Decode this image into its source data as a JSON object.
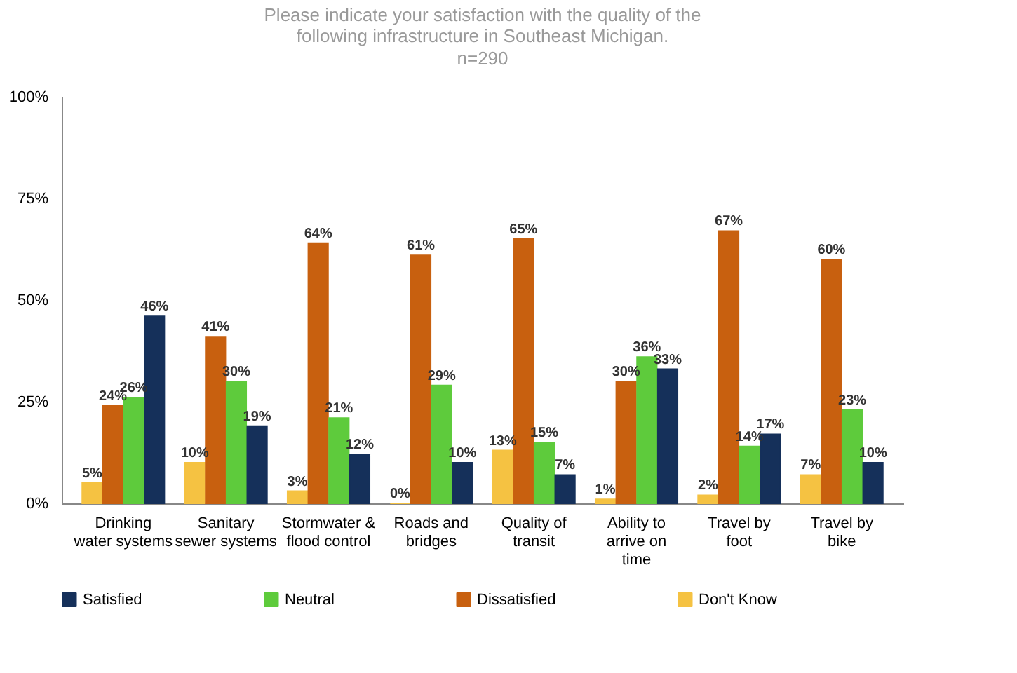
{
  "chart_data": {
    "type": "bar",
    "title": "Please indicate your satisfaction with the quality of the following infrastructure in Southeast Michigan.",
    "subtitle": "n=290",
    "categories": [
      "Drinking water systems",
      "Sanitary sewer systems",
      "Stormwater & flood control",
      "Roads and bridges",
      "Quality of transit",
      "Ability to arrive on time",
      "Travel by foot",
      "Travel by bike"
    ],
    "series": [
      {
        "name": "Don't Know",
        "color": "#f5c242",
        "values": [
          5,
          10,
          3,
          0,
          13,
          1,
          2,
          7
        ],
        "value_labels": [
          "5%",
          "10%",
          "3%",
          "0%",
          "13%",
          "1%",
          "2%",
          "7%"
        ]
      },
      {
        "name": "Dissatisfied",
        "color": "#c8600f",
        "values": [
          24,
          41,
          64,
          61,
          65,
          30,
          67,
          60
        ],
        "value_labels": [
          "24%",
          "41%",
          "64%",
          "61%",
          "65%",
          "30%",
          "67%",
          "60%"
        ]
      },
      {
        "name": "Neutral",
        "color": "#5ecb3c",
        "values": [
          26,
          30,
          21,
          29,
          15,
          36,
          14,
          23
        ],
        "value_labels": [
          "26%",
          "30%",
          "21%",
          "29%",
          "15%",
          "36%",
          "14%",
          "23%"
        ]
      },
      {
        "name": "Satisfied",
        "color": "#15305a",
        "values": [
          46,
          19,
          12,
          10,
          7,
          33,
          17,
          10
        ],
        "value_labels": [
          "46%",
          "19%",
          "12%",
          "10%",
          "7%",
          "33%",
          "17%",
          "10%"
        ]
      }
    ],
    "ylim": [
      0,
      100
    ],
    "yticks": [
      {
        "value": 0,
        "label": "0%"
      },
      {
        "value": 25,
        "label": "25%"
      },
      {
        "value": 50,
        "label": "50%"
      },
      {
        "value": 75,
        "label": "75%"
      },
      {
        "value": 100,
        "label": "100%"
      }
    ],
    "grid": false,
    "legend": "bottom"
  }
}
